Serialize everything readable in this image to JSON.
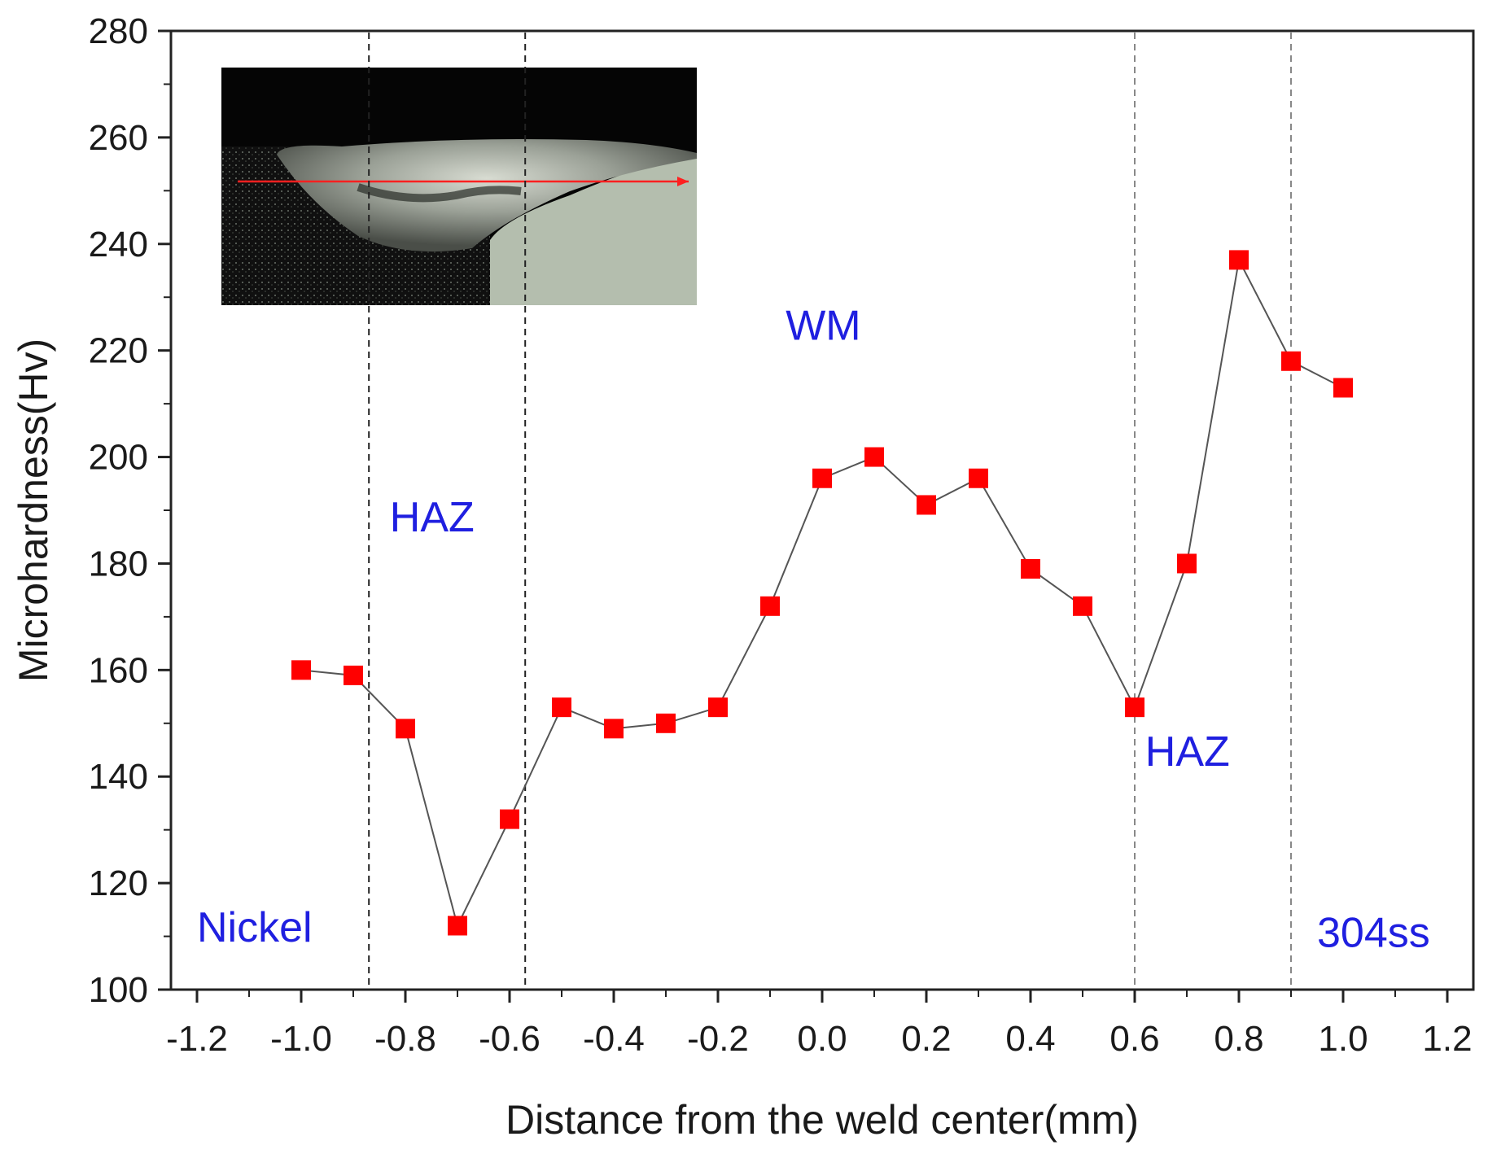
{
  "chart_data": {
    "type": "line",
    "title": "",
    "xlabel": "Distance from the weld center(mm)",
    "ylabel": "Microhardness(Hv)",
    "xlim": [
      -1.25,
      1.25
    ],
    "ylim": [
      100,
      280
    ],
    "xticks": [
      -1.2,
      -1.0,
      -0.8,
      -0.6,
      -0.4,
      -0.2,
      0.0,
      0.2,
      0.4,
      0.6,
      0.8,
      1.0,
      1.2
    ],
    "xtick_labels": [
      "-1.2",
      "-1.0",
      "-0.8",
      "-0.6",
      "-0.4",
      "-0.2",
      "0.0",
      "0.2",
      "0.4",
      "0.6",
      "0.8",
      "1.0",
      "1.2"
    ],
    "yticks": [
      100,
      120,
      140,
      160,
      180,
      200,
      220,
      240,
      260,
      280
    ],
    "ytick_labels": [
      "100",
      "120",
      "140",
      "160",
      "180",
      "200",
      "220",
      "240",
      "260",
      "280"
    ],
    "series": [
      {
        "x": [
          -1.0,
          -0.9,
          -0.8,
          -0.7,
          -0.6,
          -0.5,
          -0.4,
          -0.3,
          -0.2,
          -0.1,
          0.0,
          0.1,
          0.2,
          0.3,
          0.4,
          0.5,
          0.6,
          0.7,
          0.8,
          0.9,
          1.0
        ],
        "y": [
          160,
          159,
          149,
          112,
          132,
          153,
          149,
          150,
          153,
          172,
          196,
          200,
          191,
          196,
          179,
          172,
          153,
          180,
          237,
          218,
          213
        ],
        "marker": "square",
        "marker_color": "#ff0000",
        "line_color": "#555555"
      }
    ],
    "boundary_lines_x": [
      -0.87,
      -0.57,
      0.6,
      0.9
    ],
    "region_labels": [
      {
        "text": "Nickel",
        "x": -1.2,
        "y": 109
      },
      {
        "text": "HAZ",
        "x": -0.83,
        "y": 186
      },
      {
        "text": "WM",
        "x": -0.07,
        "y": 222
      },
      {
        "text": "HAZ",
        "x": 0.62,
        "y": 142
      },
      {
        "text": "304ss",
        "x": 0.95,
        "y": 108
      }
    ],
    "region_label_color": "#1f1fe0",
    "grid": false,
    "legend": "none",
    "inset": "weld cross-section micrograph with red arrow showing measurement path"
  }
}
